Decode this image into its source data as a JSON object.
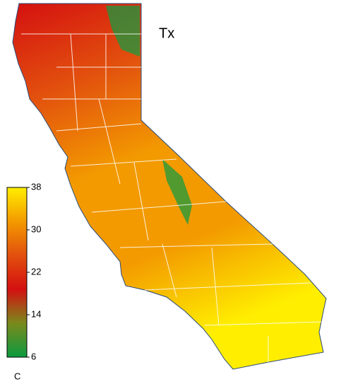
{
  "map": {
    "title": "Tx",
    "colorbar": {
      "unit": "C",
      "lim": [
        6,
        38
      ],
      "ticks": [
        38,
        30,
        22,
        14,
        6
      ],
      "colors": [
        "#0a9a40",
        "#7a8a1c",
        "#d41010",
        "#e2500e",
        "#f39a00",
        "#ffee00"
      ]
    }
  }
}
